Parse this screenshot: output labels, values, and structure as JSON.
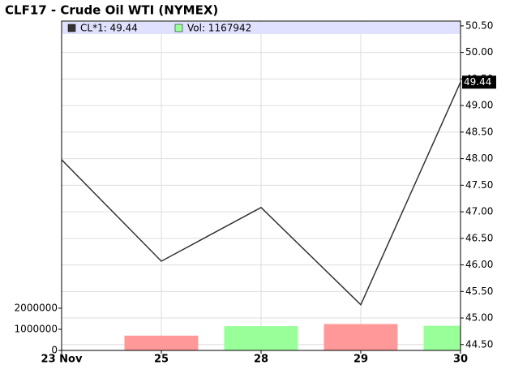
{
  "chart_data": {
    "type": "line",
    "title": "CLF17 - Crude Oil WTI (NYMEX)",
    "categories": [
      "23 Nov",
      "25",
      "28",
      "29",
      "30"
    ],
    "series": [
      {
        "name": "CL*1: 49.44",
        "type": "line",
        "axis": "y2",
        "color": "#333333",
        "values": [
          47.98,
          46.07,
          47.08,
          45.25,
          49.44
        ]
      },
      {
        "name": "Vol: 1167942",
        "type": "bar",
        "color": "#99ff99",
        "colors": [
          null,
          "#ff9999",
          "#99ff99",
          "#ff9999",
          "#99ff99"
        ],
        "values": [
          null,
          700000,
          1150000,
          1250000,
          1167942
        ]
      }
    ],
    "ylim": [
      0,
      15600000
    ],
    "yticks": [
      0,
      1000000,
      2000000
    ],
    "y2lim": [
      44.39,
      50.59
    ],
    "y2ticks": [
      {
        "value": 44.5,
        "label": "44.50"
      },
      {
        "value": 45,
        "label": "45.00"
      },
      {
        "value": 45.5,
        "label": "45.50"
      },
      {
        "value": 46,
        "label": "46.00"
      },
      {
        "value": 46.5,
        "label": "46.50"
      },
      {
        "value": 47,
        "label": "47.00"
      },
      {
        "value": 47.5,
        "label": "47.50"
      },
      {
        "value": 48,
        "label": "48.00"
      },
      {
        "value": 48.5,
        "label": "48.50"
      },
      {
        "value": 49,
        "label": "49.00"
      },
      {
        "value": 49.5,
        "label": "49.50"
      },
      {
        "value": 50,
        "label": "50.00"
      },
      {
        "value": 50.5,
        "label": "50.50"
      }
    ],
    "grid": true
  }
}
